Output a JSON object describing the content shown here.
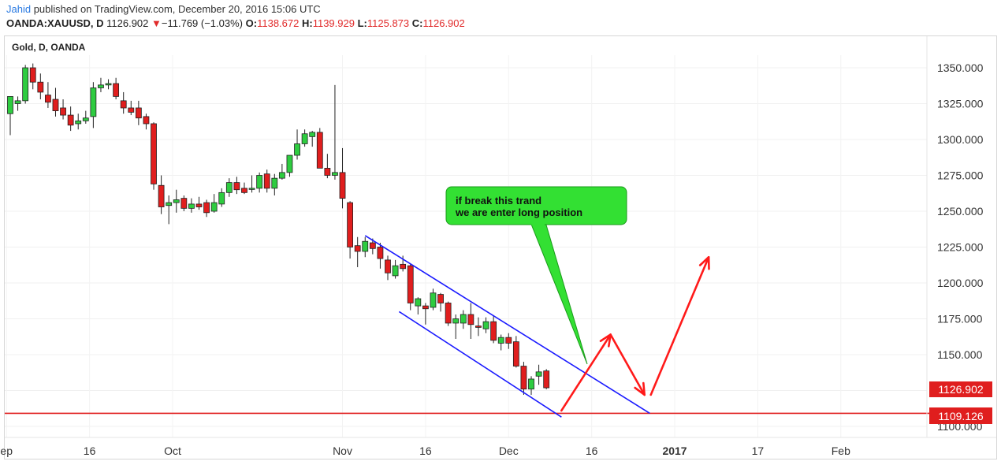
{
  "header": {
    "author": "Jahid",
    "published": "published on TradingView.com, December 20, 2016 15:06 UTC"
  },
  "quote": {
    "symbol": "OANDA:XAUUSD, D",
    "last": "1126.902",
    "arrow": "▼",
    "change": "−11.769 (−1.03%)",
    "open_label": "O:",
    "open": "1138.672",
    "high_label": "H:",
    "high": "1139.929",
    "low_label": "L:",
    "low": "1125.873",
    "close_label": "C:",
    "close": "1126.902"
  },
  "chart_title": "Gold, D, OANDA",
  "colors": {
    "up": "#2ecc40",
    "down": "#e01e1e",
    "channel": "#1a1aff",
    "support": "#e01e1e",
    "callout": "#33e033",
    "arrow": "#ff1a1a",
    "price_label": "#e01e1e"
  },
  "annotation": {
    "line1": "if break this trand",
    "line2": "we are enter long position"
  },
  "price_labels": {
    "current": "1126.902",
    "support": "1109.126"
  },
  "chart_data": {
    "type": "candlestick",
    "title": "Gold, D, OANDA",
    "ylim": [
      1095,
      1365
    ],
    "y_ticks": [
      "1350.000",
      "1325.000",
      "1300.000",
      "1275.000",
      "1250.000",
      "1225.000",
      "1200.000",
      "1175.000",
      "1150.000",
      "1125.000",
      "1100.000"
    ],
    "x_ticks": [
      {
        "label": "ep",
        "bar": -0.5
      },
      {
        "label": "16",
        "bar": 10.5
      },
      {
        "label": "Oct",
        "bar": 21.5
      },
      {
        "label": "Nov",
        "bar": 44
      },
      {
        "label": "16",
        "bar": 55
      },
      {
        "label": "Dec",
        "bar": 66
      },
      {
        "label": "16",
        "bar": 77
      },
      {
        "label": "2017",
        "bar": 88
      },
      {
        "label": "17",
        "bar": 99
      },
      {
        "label": "Feb",
        "bar": 110
      }
    ],
    "candles": [
      {
        "o": 1318,
        "h": 1330,
        "l": 1303,
        "c": 1330
      },
      {
        "o": 1325,
        "h": 1330,
        "l": 1320,
        "c": 1327
      },
      {
        "o": 1327,
        "h": 1352,
        "l": 1325,
        "c": 1350
      },
      {
        "o": 1350,
        "h": 1353,
        "l": 1335,
        "c": 1340
      },
      {
        "o": 1340,
        "h": 1346,
        "l": 1328,
        "c": 1333
      },
      {
        "o": 1331,
        "h": 1340,
        "l": 1322,
        "c": 1326
      },
      {
        "o": 1328,
        "h": 1336,
        "l": 1316,
        "c": 1320
      },
      {
        "o": 1322,
        "h": 1328,
        "l": 1314,
        "c": 1317
      },
      {
        "o": 1317,
        "h": 1323,
        "l": 1306,
        "c": 1310
      },
      {
        "o": 1311,
        "h": 1318,
        "l": 1307,
        "c": 1313
      },
      {
        "o": 1313,
        "h": 1320,
        "l": 1311,
        "c": 1315
      },
      {
        "o": 1316,
        "h": 1340,
        "l": 1308,
        "c": 1336
      },
      {
        "o": 1336,
        "h": 1343,
        "l": 1333,
        "c": 1338
      },
      {
        "o": 1338,
        "h": 1342,
        "l": 1335,
        "c": 1339
      },
      {
        "o": 1339,
        "h": 1343,
        "l": 1328,
        "c": 1330
      },
      {
        "o": 1327,
        "h": 1333,
        "l": 1318,
        "c": 1322
      },
      {
        "o": 1322,
        "h": 1327,
        "l": 1317,
        "c": 1319
      },
      {
        "o": 1322,
        "h": 1327,
        "l": 1310,
        "c": 1315
      },
      {
        "o": 1316,
        "h": 1318,
        "l": 1307,
        "c": 1311
      },
      {
        "o": 1311,
        "h": 1312,
        "l": 1265,
        "c": 1269
      },
      {
        "o": 1268,
        "h": 1275,
        "l": 1248,
        "c": 1253
      },
      {
        "o": 1254,
        "h": 1261,
        "l": 1241,
        "c": 1256
      },
      {
        "o": 1256,
        "h": 1265,
        "l": 1249,
        "c": 1258
      },
      {
        "o": 1259,
        "h": 1261,
        "l": 1250,
        "c": 1252
      },
      {
        "o": 1252,
        "h": 1259,
        "l": 1249,
        "c": 1255
      },
      {
        "o": 1255,
        "h": 1260,
        "l": 1251,
        "c": 1253
      },
      {
        "o": 1256,
        "h": 1258,
        "l": 1246,
        "c": 1249
      },
      {
        "o": 1250,
        "h": 1262,
        "l": 1249,
        "c": 1256
      },
      {
        "o": 1255,
        "h": 1266,
        "l": 1253,
        "c": 1263
      },
      {
        "o": 1263,
        "h": 1273,
        "l": 1260,
        "c": 1270
      },
      {
        "o": 1270,
        "h": 1274,
        "l": 1262,
        "c": 1265
      },
      {
        "o": 1266,
        "h": 1270,
        "l": 1262,
        "c": 1263
      },
      {
        "o": 1266,
        "h": 1275,
        "l": 1263,
        "c": 1266
      },
      {
        "o": 1266,
        "h": 1277,
        "l": 1263,
        "c": 1275
      },
      {
        "o": 1276,
        "h": 1279,
        "l": 1263,
        "c": 1266
      },
      {
        "o": 1266,
        "h": 1276,
        "l": 1261,
        "c": 1273
      },
      {
        "o": 1273,
        "h": 1283,
        "l": 1272,
        "c": 1277
      },
      {
        "o": 1277,
        "h": 1289,
        "l": 1274,
        "c": 1289
      },
      {
        "o": 1289,
        "h": 1307,
        "l": 1286,
        "c": 1297
      },
      {
        "o": 1297,
        "h": 1307,
        "l": 1295,
        "c": 1304
      },
      {
        "o": 1302,
        "h": 1306,
        "l": 1295,
        "c": 1305
      },
      {
        "o": 1305,
        "h": 1308,
        "l": 1280,
        "c": 1280
      },
      {
        "o": 1280,
        "h": 1290,
        "l": 1273,
        "c": 1275
      },
      {
        "o": 1275,
        "h": 1338,
        "l": 1272,
        "c": 1277
      },
      {
        "o": 1277,
        "h": 1294,
        "l": 1252,
        "c": 1259
      },
      {
        "o": 1256,
        "h": 1257,
        "l": 1217,
        "c": 1225
      },
      {
        "o": 1226,
        "h": 1232,
        "l": 1211,
        "c": 1222
      },
      {
        "o": 1222,
        "h": 1232,
        "l": 1218,
        "c": 1229
      },
      {
        "o": 1228,
        "h": 1231,
        "l": 1220,
        "c": 1224
      },
      {
        "o": 1225,
        "h": 1228,
        "l": 1210,
        "c": 1217
      },
      {
        "o": 1216,
        "h": 1219,
        "l": 1202,
        "c": 1207
      },
      {
        "o": 1205,
        "h": 1216,
        "l": 1203,
        "c": 1212
      },
      {
        "o": 1213,
        "h": 1219,
        "l": 1208,
        "c": 1210
      },
      {
        "o": 1212,
        "h": 1213,
        "l": 1181,
        "c": 1186
      },
      {
        "o": 1184,
        "h": 1190,
        "l": 1178,
        "c": 1189
      },
      {
        "o": 1184,
        "h": 1186,
        "l": 1171,
        "c": 1182
      },
      {
        "o": 1183,
        "h": 1196,
        "l": 1181,
        "c": 1193
      },
      {
        "o": 1192,
        "h": 1193,
        "l": 1180,
        "c": 1186
      },
      {
        "o": 1186,
        "h": 1187,
        "l": 1170,
        "c": 1172
      },
      {
        "o": 1172,
        "h": 1178,
        "l": 1161,
        "c": 1175
      },
      {
        "o": 1172,
        "h": 1181,
        "l": 1168,
        "c": 1178
      },
      {
        "o": 1178,
        "h": 1186,
        "l": 1161,
        "c": 1171
      },
      {
        "o": 1170,
        "h": 1176,
        "l": 1163,
        "c": 1169
      },
      {
        "o": 1168,
        "h": 1176,
        "l": 1165,
        "c": 1173
      },
      {
        "o": 1173,
        "h": 1177,
        "l": 1158,
        "c": 1160
      },
      {
        "o": 1158,
        "h": 1164,
        "l": 1153,
        "c": 1162
      },
      {
        "o": 1162,
        "h": 1165,
        "l": 1154,
        "c": 1158
      },
      {
        "o": 1159,
        "h": 1163,
        "l": 1141,
        "c": 1142
      },
      {
        "o": 1142,
        "h": 1145,
        "l": 1122,
        "c": 1126
      },
      {
        "o": 1126,
        "h": 1135,
        "l": 1122,
        "c": 1133
      },
      {
        "o": 1135,
        "h": 1143,
        "l": 1129,
        "c": 1138
      },
      {
        "o": 1138.672,
        "h": 1139.929,
        "l": 1125.873,
        "c": 1126.902
      }
    ],
    "channel_upper": [
      {
        "bar": 47,
        "price": 1233
      },
      {
        "bar": 84.7,
        "price": 1109.126
      }
    ],
    "channel_lower": [
      {
        "bar": 51.5,
        "price": 1180
      },
      {
        "bar": 73,
        "price": 1106.5
      }
    ],
    "support_level": 1109.126,
    "projection": [
      {
        "bar": 73,
        "price": 1111
      },
      {
        "bar": 79.5,
        "price": 1164
      },
      {
        "bar": 84,
        "price": 1122
      },
      {
        "bar": 92.5,
        "price": 1218
      }
    ]
  }
}
